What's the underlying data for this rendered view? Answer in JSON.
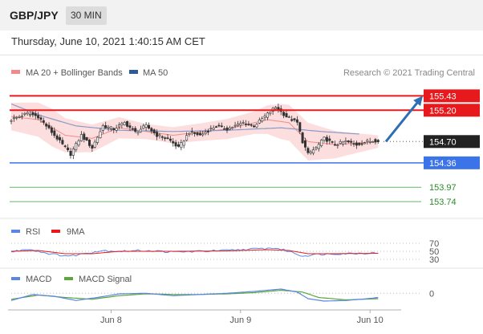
{
  "header": {
    "symbol": "GBP/JPY",
    "timeframe": "30 MIN",
    "timestamp": "Thursday, June 10, 2021 1:40:15 AM CET"
  },
  "colors": {
    "resistance": "#e8191c",
    "support": "#3b73e8",
    "target_line": "#6ab46a",
    "target_text": "#2a8a2a",
    "arrow": "#2e6eb2",
    "ma20": "#f28a8a",
    "ma50": "#8a9ac8",
    "bollinger_fill": "#fbd0d0",
    "candle": "#333333",
    "current_label": "#222222",
    "rsi": "#5b86e5",
    "rsi_ma": "#e8191c",
    "macd": "#5b86e5",
    "macd_signal": "#5aa83a"
  },
  "chart_data": [
    {
      "type": "candlestick",
      "title": "",
      "legend": [
        {
          "name": "MA 20 + Bollinger Bands",
          "color": "#f28a8a"
        },
        {
          "name": "MA 50",
          "color": "#2e5a9a"
        }
      ],
      "credit": "Research © 2021 Trading Central",
      "x_tick_labels": [
        "Jun 8",
        "Jun 9",
        "Jun 10"
      ],
      "x_tick_index": [
        37,
        85,
        133
      ],
      "n_periods": 139,
      "ylim": [
        153.55,
        155.55
      ],
      "current_price": 154.7,
      "current_label": "154.70",
      "projection_target": 155.43,
      "levels": [
        {
          "value": 155.43,
          "label": "155.43",
          "kind": "resistance"
        },
        {
          "value": 155.2,
          "label": "155.20",
          "kind": "resistance"
        },
        {
          "value": 154.36,
          "label": "154.36",
          "kind": "support"
        },
        {
          "value": 153.97,
          "label": "153.97",
          "kind": "target"
        },
        {
          "value": 153.74,
          "label": "153.74",
          "kind": "target"
        }
      ],
      "close_anchors": [
        [
          0,
          155.05
        ],
        [
          6,
          155.15
        ],
        [
          10,
          155.1
        ],
        [
          14,
          154.9
        ],
        [
          18,
          154.7
        ],
        [
          22,
          154.5
        ],
        [
          26,
          154.8
        ],
        [
          30,
          154.6
        ],
        [
          34,
          154.95
        ],
        [
          38,
          154.9
        ],
        [
          42,
          155.0
        ],
        [
          46,
          154.85
        ],
        [
          50,
          154.95
        ],
        [
          54,
          154.8
        ],
        [
          58,
          154.75
        ],
        [
          62,
          154.6
        ],
        [
          66,
          154.85
        ],
        [
          70,
          154.8
        ],
        [
          76,
          154.95
        ],
        [
          80,
          154.9
        ],
        [
          86,
          155.0
        ],
        [
          90,
          154.95
        ],
        [
          94,
          155.1
        ],
        [
          98,
          155.25
        ],
        [
          102,
          155.1
        ],
        [
          106,
          155.0
        ],
        [
          108,
          154.7
        ],
        [
          110,
          154.5
        ],
        [
          113,
          154.6
        ],
        [
          116,
          154.75
        ],
        [
          120,
          154.65
        ],
        [
          124,
          154.7
        ],
        [
          128,
          154.65
        ],
        [
          132,
          154.7
        ],
        [
          136,
          154.72
        ]
      ],
      "ma50_anchors": [
        [
          0,
          155.3
        ],
        [
          12,
          155.1
        ],
        [
          24,
          154.95
        ],
        [
          40,
          154.88
        ],
        [
          60,
          154.86
        ],
        [
          80,
          154.88
        ],
        [
          100,
          154.92
        ],
        [
          115,
          154.86
        ],
        [
          129,
          154.82
        ]
      ],
      "ma20_anchors": [
        [
          0,
          155.1
        ],
        [
          10,
          155.05
        ],
        [
          20,
          154.8
        ],
        [
          30,
          154.75
        ],
        [
          40,
          154.92
        ],
        [
          60,
          154.8
        ],
        [
          80,
          154.9
        ],
        [
          95,
          155.05
        ],
        [
          103,
          155.0
        ],
        [
          110,
          154.7
        ],
        [
          120,
          154.65
        ],
        [
          136,
          154.7
        ]
      ],
      "band_width_anchors": [
        [
          0,
          0.22
        ],
        [
          15,
          0.3
        ],
        [
          30,
          0.22
        ],
        [
          50,
          0.12
        ],
        [
          70,
          0.14
        ],
        [
          90,
          0.18
        ],
        [
          100,
          0.28
        ],
        [
          110,
          0.3
        ],
        [
          125,
          0.18
        ],
        [
          136,
          0.1
        ]
      ]
    },
    {
      "type": "line",
      "name": "RSI",
      "legend": [
        {
          "name": "RSI",
          "color": "#5b86e5"
        },
        {
          "name": "9MA",
          "color": "#e8191c"
        }
      ],
      "ylim": [
        20,
        80
      ],
      "levels": [
        {
          "value": 70,
          "label": "70"
        },
        {
          "value": 50,
          "label": "50"
        },
        {
          "value": 30,
          "label": "30"
        }
      ],
      "rsi_anchors": [
        [
          0,
          48
        ],
        [
          6,
          56
        ],
        [
          10,
          50
        ],
        [
          16,
          42
        ],
        [
          22,
          38
        ],
        [
          28,
          46
        ],
        [
          34,
          52
        ],
        [
          40,
          50
        ],
        [
          50,
          52
        ],
        [
          60,
          48
        ],
        [
          70,
          50
        ],
        [
          80,
          52
        ],
        [
          88,
          55
        ],
        [
          98,
          58
        ],
        [
          103,
          50
        ],
        [
          108,
          38
        ],
        [
          112,
          42
        ],
        [
          120,
          44
        ],
        [
          128,
          45
        ],
        [
          136,
          46
        ]
      ],
      "ma_anchors": [
        [
          0,
          50
        ],
        [
          10,
          52
        ],
        [
          20,
          44
        ],
        [
          30,
          44
        ],
        [
          40,
          50
        ],
        [
          60,
          50
        ],
        [
          80,
          51
        ],
        [
          95,
          54
        ],
        [
          103,
          52
        ],
        [
          110,
          44
        ],
        [
          120,
          44
        ],
        [
          136,
          45
        ]
      ]
    },
    {
      "type": "line",
      "name": "MACD",
      "legend": [
        {
          "name": "MACD",
          "color": "#5b86e5"
        },
        {
          "name": "MACD Signal",
          "color": "#5aa83a"
        }
      ],
      "ylim": [
        -0.25,
        0.15
      ],
      "levels": [
        {
          "value": 0,
          "label": "0"
        }
      ],
      "macd_anchors": [
        [
          0,
          -0.12
        ],
        [
          8,
          -0.02
        ],
        [
          16,
          -0.05
        ],
        [
          24,
          -0.12
        ],
        [
          32,
          -0.07
        ],
        [
          40,
          -0.01
        ],
        [
          50,
          0.0
        ],
        [
          60,
          -0.04
        ],
        [
          70,
          -0.02
        ],
        [
          80,
          0.0
        ],
        [
          90,
          0.03
        ],
        [
          100,
          0.07
        ],
        [
          106,
          0.02
        ],
        [
          110,
          -0.09
        ],
        [
          116,
          -0.13
        ],
        [
          124,
          -0.12
        ],
        [
          132,
          -0.09
        ],
        [
          136,
          -0.07
        ]
      ],
      "signal_anchors": [
        [
          0,
          -0.1
        ],
        [
          10,
          -0.03
        ],
        [
          20,
          -0.07
        ],
        [
          30,
          -0.1
        ],
        [
          40,
          -0.04
        ],
        [
          50,
          -0.01
        ],
        [
          60,
          -0.02
        ],
        [
          70,
          -0.02
        ],
        [
          80,
          -0.01
        ],
        [
          90,
          0.01
        ],
        [
          100,
          0.05
        ],
        [
          108,
          0.02
        ],
        [
          114,
          -0.07
        ],
        [
          124,
          -0.11
        ],
        [
          136,
          -0.09
        ]
      ]
    }
  ]
}
